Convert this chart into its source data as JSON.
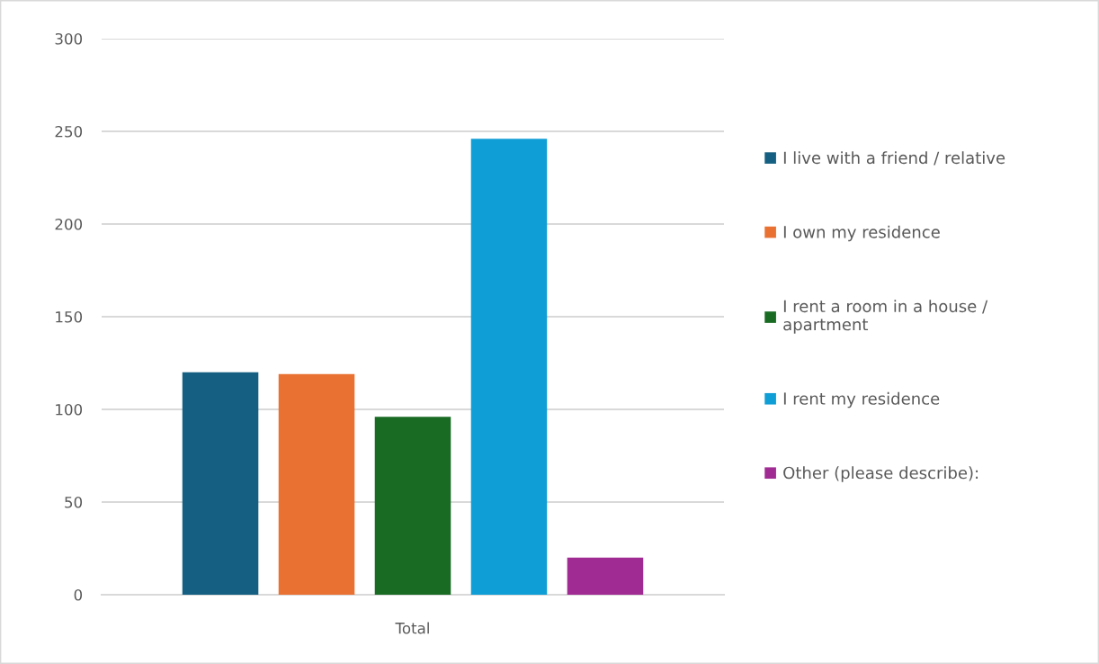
{
  "chart_data": {
    "type": "bar",
    "categories": [
      "Total"
    ],
    "series": [
      {
        "name": "I live with a friend / relative",
        "color": "#156082",
        "values": [
          120
        ]
      },
      {
        "name": "I own my residence",
        "color": "#e97132",
        "values": [
          119
        ]
      },
      {
        "name": "I rent a room in a house / apartment",
        "color": "#196b24",
        "values": [
          96
        ]
      },
      {
        "name": "I rent my residence",
        "color": "#0f9ed5",
        "values": [
          246
        ]
      },
      {
        "name": "Other (please describe):",
        "color": "#a02b93",
        "values": [
          20
        ]
      }
    ],
    "ylim": [
      0,
      300
    ],
    "yticks": [
      0,
      50,
      100,
      150,
      200,
      250,
      300
    ],
    "grid": "y",
    "legend": "right"
  }
}
